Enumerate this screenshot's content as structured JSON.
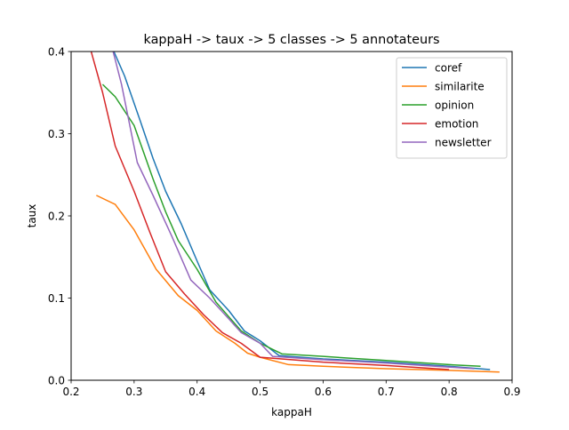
{
  "chart_data": {
    "type": "line",
    "title": "kappaH -> taux -> 5 classes -> 5 annotateurs",
    "xlabel": "kappaH",
    "ylabel": "taux",
    "xlim": [
      0.2,
      0.9
    ],
    "ylim": [
      0.0,
      0.4
    ],
    "xticks": [
      0.2,
      0.3,
      0.4,
      0.5,
      0.6,
      0.7,
      0.8,
      0.9
    ],
    "xtick_labels": [
      "0.2",
      "0.3",
      "0.4",
      "0.5",
      "0.6",
      "0.7",
      "0.8",
      "0.9"
    ],
    "yticks": [
      0.0,
      0.1,
      0.2,
      0.3,
      0.4
    ],
    "ytick_labels": [
      "0.0",
      "0.1",
      "0.2",
      "0.3",
      "0.4"
    ],
    "grid": false,
    "legend_position": "top-right",
    "series": [
      {
        "name": "coref",
        "color": "#1f77b4",
        "x": [
          0.265,
          0.285,
          0.31,
          0.33,
          0.35,
          0.375,
          0.4,
          0.42,
          0.45,
          0.475,
          0.5,
          0.53,
          0.6,
          0.7,
          0.8,
          0.865
        ],
        "y": [
          0.405,
          0.37,
          0.315,
          0.27,
          0.23,
          0.19,
          0.145,
          0.11,
          0.085,
          0.06,
          0.048,
          0.03,
          0.026,
          0.022,
          0.017,
          0.013
        ]
      },
      {
        "name": "similarite",
        "color": "#ff7f0e",
        "x": [
          0.24,
          0.27,
          0.3,
          0.335,
          0.37,
          0.4,
          0.43,
          0.46,
          0.48,
          0.5,
          0.545,
          0.6,
          0.7,
          0.8,
          0.88
        ],
        "y": [
          0.225,
          0.214,
          0.183,
          0.135,
          0.103,
          0.085,
          0.06,
          0.045,
          0.033,
          0.028,
          0.019,
          0.017,
          0.014,
          0.012,
          0.01
        ]
      },
      {
        "name": "opinion",
        "color": "#2ca02c",
        "x": [
          0.25,
          0.27,
          0.3,
          0.33,
          0.35,
          0.37,
          0.4,
          0.43,
          0.47,
          0.5,
          0.535,
          0.6,
          0.7,
          0.8,
          0.85
        ],
        "y": [
          0.36,
          0.345,
          0.31,
          0.245,
          0.205,
          0.17,
          0.135,
          0.095,
          0.06,
          0.045,
          0.032,
          0.029,
          0.024,
          0.019,
          0.017
        ]
      },
      {
        "name": "emotion",
        "color": "#d62728",
        "x": [
          0.23,
          0.25,
          0.27,
          0.3,
          0.325,
          0.35,
          0.38,
          0.41,
          0.44,
          0.47,
          0.5,
          0.55,
          0.6,
          0.7,
          0.8
        ],
        "y": [
          0.405,
          0.35,
          0.285,
          0.23,
          0.18,
          0.132,
          0.105,
          0.08,
          0.058,
          0.045,
          0.028,
          0.025,
          0.022,
          0.018,
          0.013
        ]
      },
      {
        "name": "newsletter",
        "color": "#9467bd",
        "x": [
          0.265,
          0.28,
          0.305,
          0.33,
          0.36,
          0.39,
          0.42,
          0.45,
          0.47,
          0.5,
          0.52,
          0.6,
          0.7,
          0.8,
          0.84
        ],
        "y": [
          0.405,
          0.36,
          0.265,
          0.225,
          0.175,
          0.122,
          0.1,
          0.075,
          0.058,
          0.045,
          0.029,
          0.025,
          0.021,
          0.016,
          0.014
        ]
      }
    ]
  }
}
